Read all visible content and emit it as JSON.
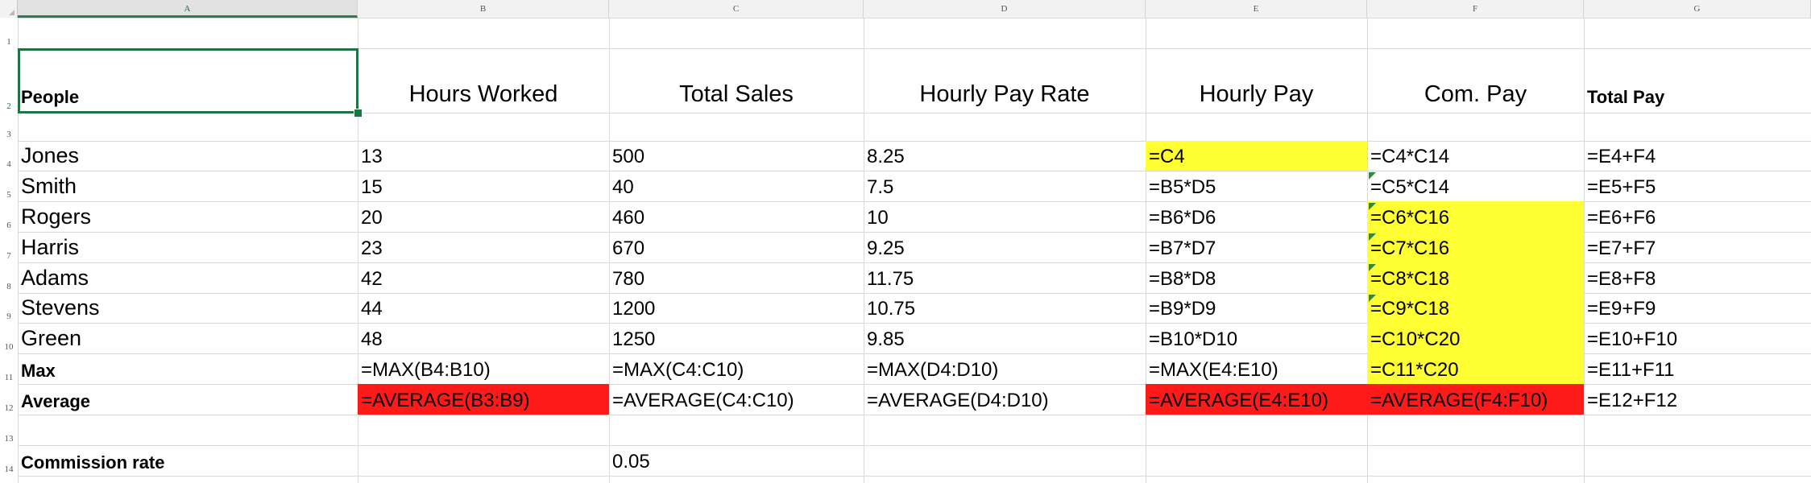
{
  "columns": [
    "A",
    "B",
    "C",
    "D",
    "E",
    "F",
    "G"
  ],
  "rows": [
    "1",
    "2",
    "3",
    "4",
    "5",
    "6",
    "7",
    "8",
    "9",
    "10",
    "11",
    "12",
    "13",
    "14"
  ],
  "cells": {
    "A2": "People",
    "B2": "Hours Worked",
    "C2": "Total Sales",
    "D2": "Hourly Pay Rate",
    "E2": "Hourly Pay",
    "F2": "Com. Pay",
    "G2": "Total Pay",
    "A4": "Jones",
    "B4": "13",
    "C4": "500",
    "D4": "8.25",
    "E4": "=C4",
    "F4": "=C4*C14",
    "G4": "=E4+F4",
    "A5": "Smith",
    "B5": "15",
    "C5": "40",
    "D5": "7.5",
    "E5": "=B5*D5",
    "F5": "=C5*C14",
    "G5": "=E5+F5",
    "A6": "Rogers",
    "B6": "20",
    "C6": "460",
    "D6": "10",
    "E6": "=B6*D6",
    "F6": "=C6*C16",
    "G6": "=E6+F6",
    "A7": "Harris",
    "B7": "23",
    "C7": "670",
    "D7": "9.25",
    "E7": "=B7*D7",
    "F7": "=C7*C16",
    "G7": "=E7+F7",
    "A8": "Adams",
    "B8": "42",
    "C8": "780",
    "D8": "11.75",
    "E8": "=B8*D8",
    "F8": "=C8*C18",
    "G8": "=E8+F8",
    "A9": "Stevens",
    "B9": "44",
    "C9": "1200",
    "D9": "10.75",
    "E9": "=B9*D9",
    "F9": "=C9*C18",
    "G9": "=E9+F9",
    "A10": "Green",
    "B10": "48",
    "C10": "1250",
    "D10": "9.85",
    "E10": "=B10*D10",
    "F10": "=C10*C20",
    "G10": "=E10+F10",
    "A11": "Max",
    "B11": "=MAX(B4:B10)",
    "C11": "=MAX(C4:C10)",
    "D11": "=MAX(D4:D10)",
    "E11": "=MAX(E4:E10)",
    "F11": "=C11*C20",
    "G11": "=E11+F11",
    "A12": "Average",
    "B12": "=AVERAGE(B3:B9)",
    "C12": "=AVERAGE(C4:C10)",
    "D12": "=AVERAGE(D4:D10)",
    "E12": "=AVERAGE(E4:E10)",
    "F12": "=AVERAGE(F4:F10)",
    "G12": "=E12+F12",
    "A14": "Commission rate",
    "C14": "0.05"
  },
  "selected_cell": "A2",
  "colors": {
    "highlight_yellow": "#ffff33",
    "highlight_red": "#ff1a1a",
    "selection_green": "#217346"
  }
}
